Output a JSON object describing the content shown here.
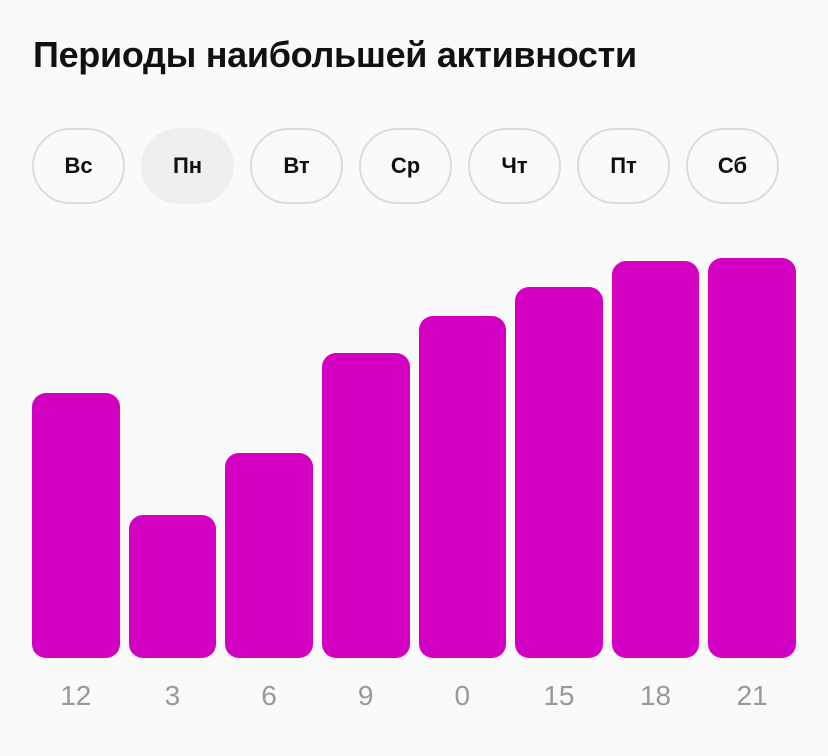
{
  "title": "Периоды наибольшей активности",
  "days": [
    {
      "label": "Вс",
      "active": false
    },
    {
      "label": "Пн",
      "active": true
    },
    {
      "label": "Вт",
      "active": false
    },
    {
      "label": "Ср",
      "active": false
    },
    {
      "label": "Чт",
      "active": false
    },
    {
      "label": "Пт",
      "active": false
    },
    {
      "label": "Сб",
      "active": false
    }
  ],
  "colors": {
    "bar": "#d200c0",
    "label": "#999999",
    "active_day_bg": "#eeeff1"
  },
  "chart_data": {
    "type": "bar",
    "title": "Периоды наибольшей активности",
    "categories": [
      "12",
      "3",
      "6",
      "9",
      "0",
      "15",
      "18",
      "21"
    ],
    "values": [
      265,
      143,
      205,
      305,
      342,
      371,
      397,
      400
    ],
    "xlabel": "",
    "ylabel": "",
    "ylim": [
      0,
      400
    ],
    "grid": false,
    "legend": null
  }
}
